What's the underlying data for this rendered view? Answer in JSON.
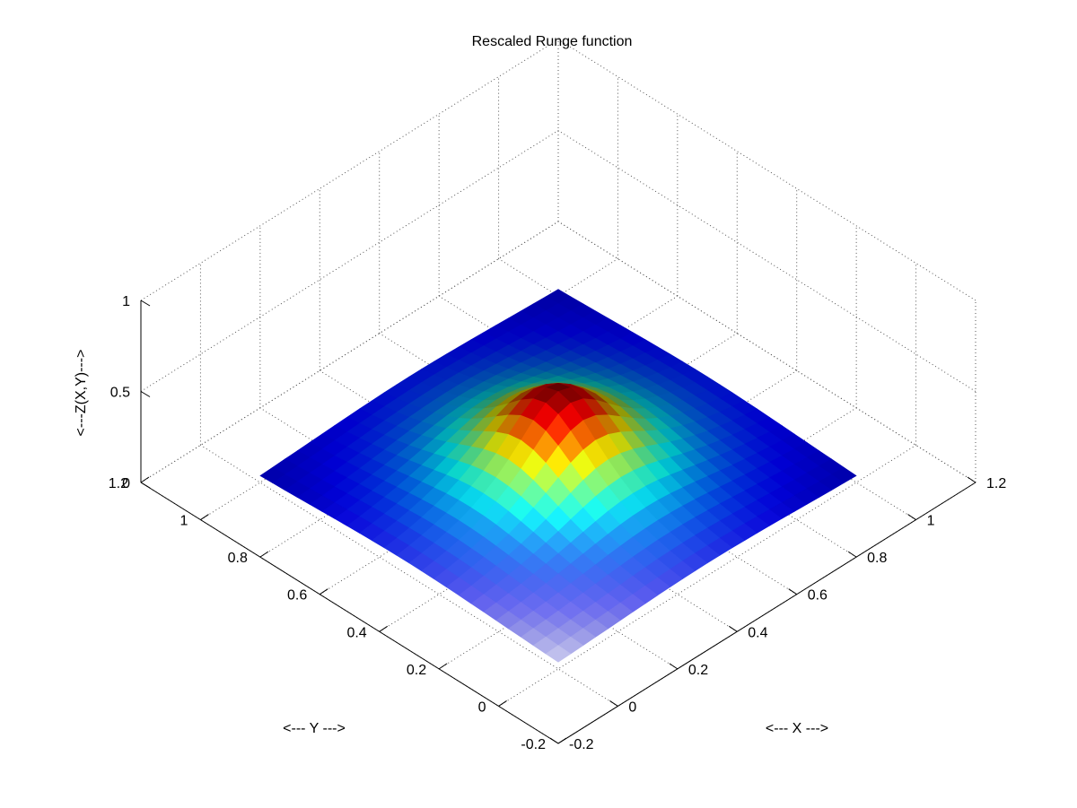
{
  "chart_data": {
    "type": "surface",
    "title": "Rescaled Runge function",
    "xlabel": "<--- X --->",
    "ylabel": "<--- Y --->",
    "zlabel": "<---Z(X,Y)--->",
    "xlim": [
      -0.2,
      1.2
    ],
    "ylim": [
      -0.2,
      1.2
    ],
    "zlim": [
      0,
      1
    ],
    "xticks": [
      -0.2,
      0,
      0.2,
      0.4,
      0.6,
      0.8,
      1,
      1.2
    ],
    "xtick_labels": [
      "-0.2",
      "0",
      "0.2",
      "0.4",
      "0.6",
      "0.8",
      "1",
      "1.2"
    ],
    "yticks": [
      -0.2,
      0,
      0.2,
      0.4,
      0.6,
      0.8,
      1,
      1.2
    ],
    "ytick_labels": [
      "-0.2",
      "0",
      "0.2",
      "0.4",
      "0.6",
      "0.8",
      "1",
      "1.2"
    ],
    "zticks": [
      0,
      0.5,
      1
    ],
    "ztick_labels": [
      "0",
      "0.5",
      "1"
    ],
    "grid": true,
    "colormap": "jet",
    "surface": {
      "x": [
        0,
        0.1,
        0.2,
        0.3,
        0.4,
        0.5,
        0.6,
        0.7,
        0.8,
        0.9,
        1
      ],
      "y": [
        0,
        0.1,
        0.2,
        0.3,
        0.4,
        0.5,
        0.6,
        0.7,
        0.8,
        0.9,
        1
      ],
      "peak": {
        "x": 0.5,
        "y": 0.5,
        "z": 0.5
      },
      "function": "z = 0.5 / (1 + 25*((x-0.5)^2 + (y-0.5)^2))"
    }
  }
}
